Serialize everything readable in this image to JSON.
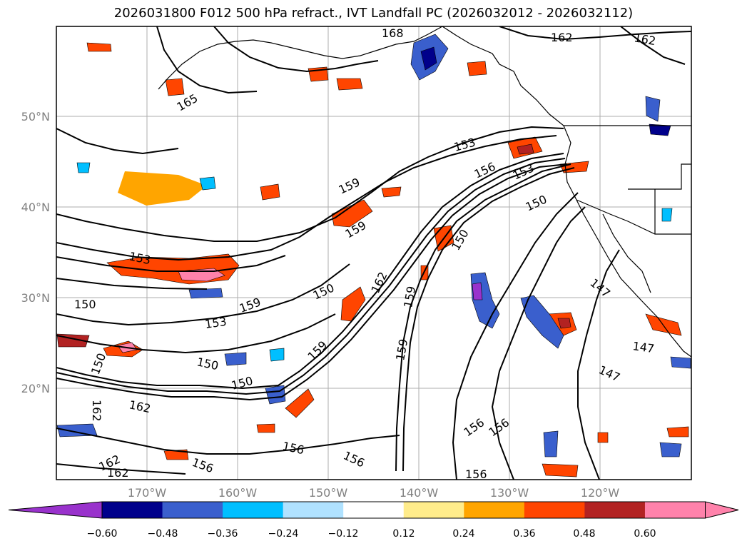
{
  "title": "2026031800 F012 500 hPa refract., IVT Landfall PC (2026032012 - 2026032112)",
  "lat_ticks": [
    "50°N",
    "40°N",
    "30°N",
    "20°N"
  ],
  "lon_ticks": [
    "170°W",
    "160°W",
    "150°W",
    "140°W",
    "130°W",
    "120°W"
  ],
  "colorbar": {
    "colors": [
      "#9932cc",
      "#00008b",
      "#3a5fcd",
      "#00bfff",
      "#b0e2ff",
      "#ffffff",
      "#ffec8b",
      "#ffa500",
      "#ff4500",
      "#b22222",
      "#ff82ab",
      "#ff82ab"
    ],
    "labels": [
      "−0.60",
      "−0.48",
      "−0.36",
      "−0.24",
      "−0.12",
      "0.12",
      "0.24",
      "0.36",
      "0.48",
      "0.60"
    ]
  },
  "contour_labels": [
    "168",
    "162",
    "162",
    "165",
    "153",
    "159",
    "159",
    "156",
    "153",
    "150",
    "150",
    "153",
    "150",
    "159",
    "153",
    "162",
    "159",
    "150",
    "147",
    "150",
    "150",
    "159",
    "147",
    "147",
    "159",
    "162",
    "162",
    "156",
    "156",
    "156",
    "156",
    "156",
    "156",
    "162",
    "150",
    "162"
  ]
}
